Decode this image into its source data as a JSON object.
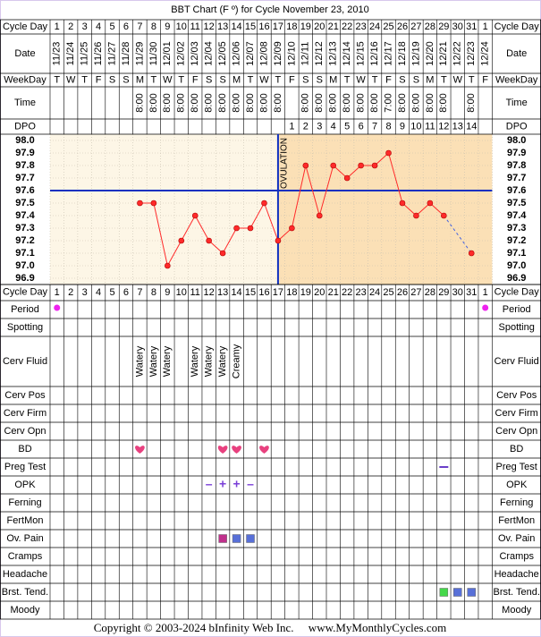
{
  "title": "BBT Chart (F º) for Cycle November 23, 2010",
  "cycle_day_label": "Cycle Day",
  "cycle_days": [
    1,
    2,
    3,
    4,
    5,
    6,
    7,
    8,
    9,
    10,
    11,
    12,
    13,
    14,
    15,
    16,
    17,
    18,
    19,
    20,
    21,
    22,
    23,
    24,
    25,
    26,
    27,
    28,
    29,
    30,
    31,
    1
  ],
  "date_label": "Date",
  "dates": [
    "11/23",
    "11/24",
    "11/25",
    "11/26",
    "11/27",
    "11/28",
    "11/29",
    "11/30",
    "12/01",
    "12/02",
    "12/03",
    "12/04",
    "12/05",
    "12/06",
    "12/07",
    "12/08",
    "12/09",
    "12/10",
    "12/11",
    "12/12",
    "12/13",
    "12/14",
    "12/15",
    "12/16",
    "12/17",
    "12/18",
    "12/19",
    "12/20",
    "12/21",
    "12/22",
    "12/23",
    "12/24"
  ],
  "weekday_label": "WeekDay",
  "weekdays": [
    "T",
    "W",
    "T",
    "F",
    "S",
    "S",
    "M",
    "T",
    "W",
    "T",
    "F",
    "S",
    "S",
    "M",
    "T",
    "W",
    "T",
    "F",
    "S",
    "S",
    "M",
    "T",
    "W",
    "T",
    "F",
    "S",
    "S",
    "M",
    "T",
    "W",
    "T",
    "F"
  ],
  "time_label": "Time",
  "times": [
    null,
    null,
    null,
    null,
    null,
    null,
    "8:00",
    "8:00",
    "8:00",
    "8:00",
    "8:00",
    "8:00",
    "8:00",
    "8:00",
    "8:00",
    "8:00",
    "8:00",
    null,
    "8:00",
    "8:00",
    "8:00",
    "8:00",
    "8:00",
    "8:00",
    "7:00",
    "8:00",
    "8:00",
    "8:00",
    "8:00",
    null,
    "8:00",
    null
  ],
  "dpo_label": "DPO",
  "dpo": [
    null,
    null,
    null,
    null,
    null,
    null,
    null,
    null,
    null,
    null,
    null,
    null,
    null,
    null,
    null,
    null,
    null,
    1,
    2,
    3,
    4,
    5,
    6,
    7,
    8,
    9,
    10,
    11,
    12,
    13,
    14,
    null
  ],
  "chart_data": {
    "type": "line",
    "values": [
      null,
      null,
      null,
      null,
      null,
      null,
      97.5,
      97.5,
      97.0,
      97.2,
      97.4,
      97.2,
      97.1,
      97.3,
      97.3,
      97.5,
      97.2,
      97.3,
      97.8,
      97.4,
      97.8,
      97.7,
      97.8,
      97.8,
      97.9,
      97.5,
      97.4,
      97.5,
      97.4,
      null,
      97.1,
      null
    ],
    "color": "#ff2a2a",
    "ylim": [
      96.85,
      98.05
    ],
    "yticks": [
      {
        "value": 98.0,
        "label": "98.0"
      },
      {
        "value": 97.9,
        "label": "97.9"
      },
      {
        "value": 97.8,
        "label": "97.8"
      },
      {
        "value": 97.7,
        "label": "97.7"
      },
      {
        "value": 97.6,
        "label": "97.6"
      },
      {
        "value": 97.5,
        "label": "97.5"
      },
      {
        "value": 97.4,
        "label": "97.4"
      },
      {
        "value": 97.3,
        "label": "97.3"
      },
      {
        "value": 97.2,
        "label": "97.2"
      },
      {
        "value": 97.1,
        "label": "97.1"
      },
      {
        "value": 97.0,
        "label": "97.0"
      },
      {
        "value": 96.9,
        "label": "96.9"
      }
    ],
    "coverline": 97.6,
    "ovulation_index": 16,
    "ovulation_label": "OVULATION",
    "grid": true
  },
  "rows": [
    {
      "label": "Period",
      "shape": "dot",
      "color": "#ee22ee",
      "marks": [
        {
          "col": 0
        },
        {
          "col": 31
        }
      ]
    },
    {
      "label": "Spotting",
      "marks": []
    },
    {
      "label": "Cerv Fluid",
      "tall": true,
      "marks": [
        {
          "col": 6,
          "text": "Watery"
        },
        {
          "col": 7,
          "text": "Watery"
        },
        {
          "col": 8,
          "text": "Watery"
        },
        {
          "col": 10,
          "text": "Watery"
        },
        {
          "col": 11,
          "text": "Watery"
        },
        {
          "col": 12,
          "text": "Watery"
        },
        {
          "col": 13,
          "text": "Creamy"
        }
      ]
    },
    {
      "label": "Cerv Pos",
      "marks": []
    },
    {
      "label": "Cerv Firm",
      "marks": []
    },
    {
      "label": "Cerv Opn",
      "marks": []
    },
    {
      "label": "BD",
      "shape": "heart",
      "color": "#e8417f",
      "marks": [
        {
          "col": 6
        },
        {
          "col": 12
        },
        {
          "col": 13
        },
        {
          "col": 15
        }
      ]
    },
    {
      "label": "Preg Test",
      "shape": "dash",
      "color": "#6a3fc8",
      "marks": [
        {
          "col": 28
        }
      ]
    },
    {
      "label": "OPK",
      "color": "#7a3fd8",
      "marks": [
        {
          "col": 11,
          "text": "–"
        },
        {
          "col": 12,
          "text": "+"
        },
        {
          "col": 13,
          "text": "+"
        },
        {
          "col": 14,
          "text": "–"
        }
      ]
    },
    {
      "label": "Ferning",
      "marks": []
    },
    {
      "label": "FertMon",
      "marks": []
    },
    {
      "label": "Ov. Pain",
      "shape": "square",
      "marks": [
        {
          "col": 12,
          "color": "#c0308c"
        },
        {
          "col": 13,
          "color": "#5870d8"
        },
        {
          "col": 14,
          "color": "#5870d8"
        }
      ]
    },
    {
      "label": "Cramps",
      "marks": []
    },
    {
      "label": "Headache",
      "marks": []
    },
    {
      "label": "Brst. Tend.",
      "shape": "square",
      "marks": [
        {
          "col": 28,
          "color": "#44d84a"
        },
        {
          "col": 29,
          "color": "#5870d8"
        },
        {
          "col": 30,
          "color": "#5870d8"
        }
      ]
    },
    {
      "label": "Moody",
      "marks": []
    }
  ],
  "copyright": "Copyright © 2003-2024 bInfinity Web Inc.     www.MyMonthlyCycles.com"
}
